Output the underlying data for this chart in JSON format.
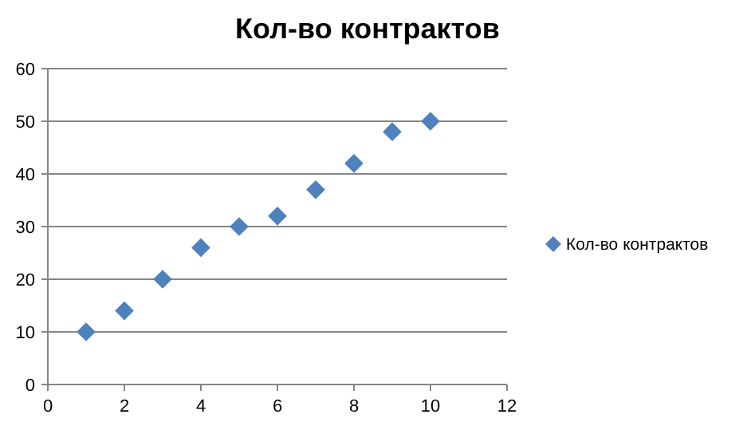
{
  "chart_data": {
    "type": "scatter",
    "title": "Кол-во контрактов",
    "x": [
      1,
      2,
      3,
      4,
      5,
      6,
      7,
      8,
      9,
      10
    ],
    "series": [
      {
        "name": "Кол-во контрактов",
        "color": "#4f81bd",
        "values": [
          10,
          14,
          20,
          26,
          30,
          32,
          37,
          42,
          48,
          50
        ]
      }
    ],
    "xlim": [
      0,
      12
    ],
    "xticks": [
      0,
      2,
      4,
      6,
      8,
      10,
      12
    ],
    "ylim": [
      0,
      60
    ],
    "yticks": [
      0,
      10,
      20,
      30,
      40,
      50,
      60
    ],
    "grid": "y",
    "legend": "right",
    "marker": "diamond"
  }
}
